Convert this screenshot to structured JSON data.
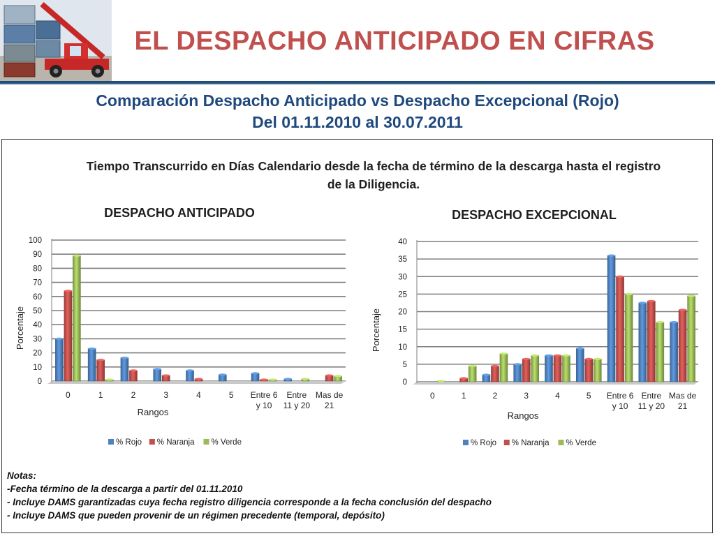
{
  "header": {
    "title": "EL DESPACHO ANTICIPADO EN CIFRAS",
    "subtitle_line1": "Comparación Despacho Anticipado vs Despacho Excepcional (Rojo)",
    "subtitle_line2": "Del 01.11.2010 al 30.07.2011"
  },
  "panel": {
    "heading_line1": "Tiempo Transcurrido en Días Calendario desde la fecha de término de la descarga hasta el registro",
    "heading_line2": "de la Diligencia."
  },
  "chart_data": [
    {
      "type": "bar",
      "title": "DESPACHO ANTICIPADO",
      "xlabel": "Rangos",
      "ylabel": "Porcentaje",
      "ylim": [
        0,
        100
      ],
      "yticks": [
        "0",
        "10",
        "20",
        "30",
        "40",
        "50",
        "60",
        "70",
        "80",
        "90",
        "100"
      ],
      "categories": [
        "0",
        "1",
        "2",
        "3",
        "4",
        "5",
        "Entre 6\ny 10",
        "Entre\n11 y 20",
        "Mas de\n21"
      ],
      "series": [
        {
          "name": "% Rojo",
          "values": [
            30,
            23,
            16.5,
            8.5,
            7.5,
            4.5,
            5.5,
            1.5,
            0
          ],
          "color": "#4f81bd"
        },
        {
          "name": "% Naranja",
          "values": [
            64,
            15,
            7.5,
            4,
            1.5,
            0,
            1,
            0,
            4
          ],
          "color": "#c0504d"
        },
        {
          "name": "% Verde",
          "values": [
            89,
            1,
            0,
            0,
            0,
            0,
            1,
            1.5,
            3.5
          ],
          "color": "#9bbb59"
        }
      ],
      "grid": true,
      "legend": "bottom"
    },
    {
      "type": "bar",
      "title": "DESPACHO EXCEPCIONAL",
      "xlabel": "Rangos",
      "ylabel": "Porcentaje",
      "ylim": [
        0,
        40
      ],
      "yticks": [
        "0",
        "5",
        "10",
        "15",
        "20",
        "25",
        "30",
        "35",
        "40"
      ],
      "categories": [
        "0",
        "1",
        "2",
        "3",
        "4",
        "5",
        "Entre 6\ny 10",
        "Entre\n11 y 20",
        "Mas de\n21"
      ],
      "series": [
        {
          "name": "% Rojo",
          "values": [
            0,
            0,
            2,
            5,
            7.5,
            9.5,
            36,
            22.5,
            17
          ],
          "color": "#4f81bd"
        },
        {
          "name": "% Naranja",
          "values": [
            0,
            1,
            4.5,
            6.5,
            7.5,
            6.5,
            30,
            23,
            20.5
          ],
          "color": "#c0504d"
        },
        {
          "name": "% Verde",
          "values": [
            0.2,
            4.5,
            8,
            7.5,
            7.5,
            6.5,
            25,
            17,
            24.5
          ],
          "color": "#9bbb59"
        }
      ],
      "grid": true,
      "legend": "bottom"
    }
  ],
  "notes": {
    "heading": "Notas:",
    "lines": [
      "-Fecha término de la descarga a partir del 01.11.2010",
      "- Incluye DAMS garantizadas cuya fecha registro diligencia corresponde  a la fecha conclusión del despacho",
      "- Incluye DAMS que pueden provenir de un régimen precedente (temporal, depósito)"
    ]
  },
  "logo": {
    "icon": "container-crane-icon"
  }
}
